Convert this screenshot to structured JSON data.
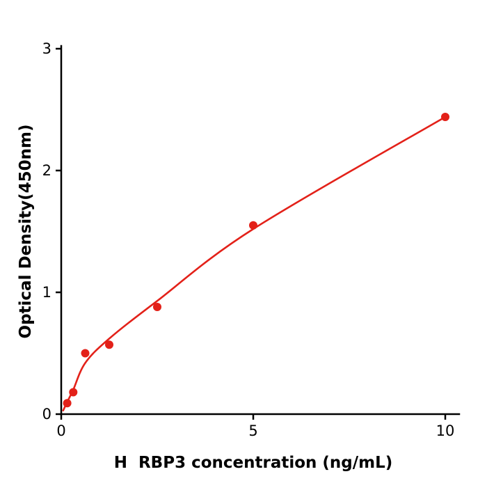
{
  "chart_data": {
    "type": "scatter",
    "title": "",
    "xlabel": "H  RBP3 concentration (ng/mL)",
    "ylabel": "Optical Density(450nm)",
    "xlim": [
      0,
      10.4
    ],
    "ylim": [
      0,
      3
    ],
    "x_ticks": [
      0,
      5,
      10
    ],
    "y_ticks": [
      0,
      1,
      2,
      3
    ],
    "grid": false,
    "legend": "none",
    "point_color": "#e32119",
    "curve_color": "#e32119",
    "axis_color": "#000000",
    "points": [
      {
        "x": 0.156,
        "y": 0.09
      },
      {
        "x": 0.3125,
        "y": 0.18
      },
      {
        "x": 0.625,
        "y": 0.5
      },
      {
        "x": 1.25,
        "y": 0.57
      },
      {
        "x": 2.5,
        "y": 0.88
      },
      {
        "x": 5,
        "y": 1.55
      },
      {
        "x": 10,
        "y": 2.44
      }
    ],
    "fit_curve": [
      {
        "x": 0.05,
        "y": 0.03
      },
      {
        "x": 0.156,
        "y": 0.1
      },
      {
        "x": 0.3125,
        "y": 0.2
      },
      {
        "x": 0.625,
        "y": 0.42
      },
      {
        "x": 1.25,
        "y": 0.62
      },
      {
        "x": 2.5,
        "y": 0.93
      },
      {
        "x": 5,
        "y": 1.52
      },
      {
        "x": 10,
        "y": 2.44
      }
    ]
  }
}
